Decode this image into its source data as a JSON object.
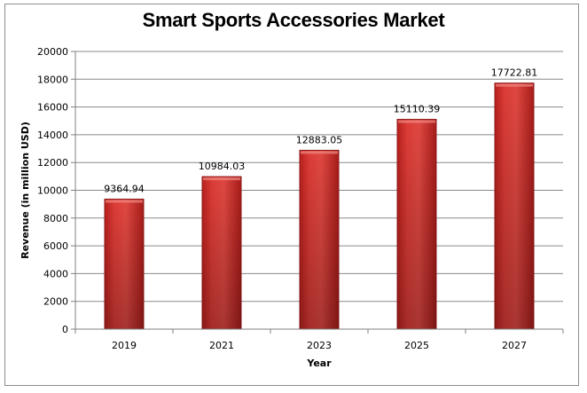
{
  "chart_data": {
    "type": "bar",
    "title": "Smart Sports Accessories Market",
    "xlabel": "Year",
    "ylabel": "Revenue (in million USD)",
    "categories": [
      "2019",
      "2021",
      "2023",
      "2025",
      "2027"
    ],
    "values": [
      9364.94,
      10984.03,
      12883.05,
      15110.39,
      17722.81
    ],
    "value_labels": [
      "9364.94",
      "10984.03",
      "12883.05",
      "15110.39",
      "17722.81"
    ],
    "ylim": [
      0,
      20000
    ],
    "yticks": [
      0,
      2000,
      4000,
      6000,
      8000,
      10000,
      12000,
      14000,
      16000,
      18000,
      20000
    ],
    "grid": true,
    "legend": "none",
    "bar_color": "#d83a36"
  }
}
